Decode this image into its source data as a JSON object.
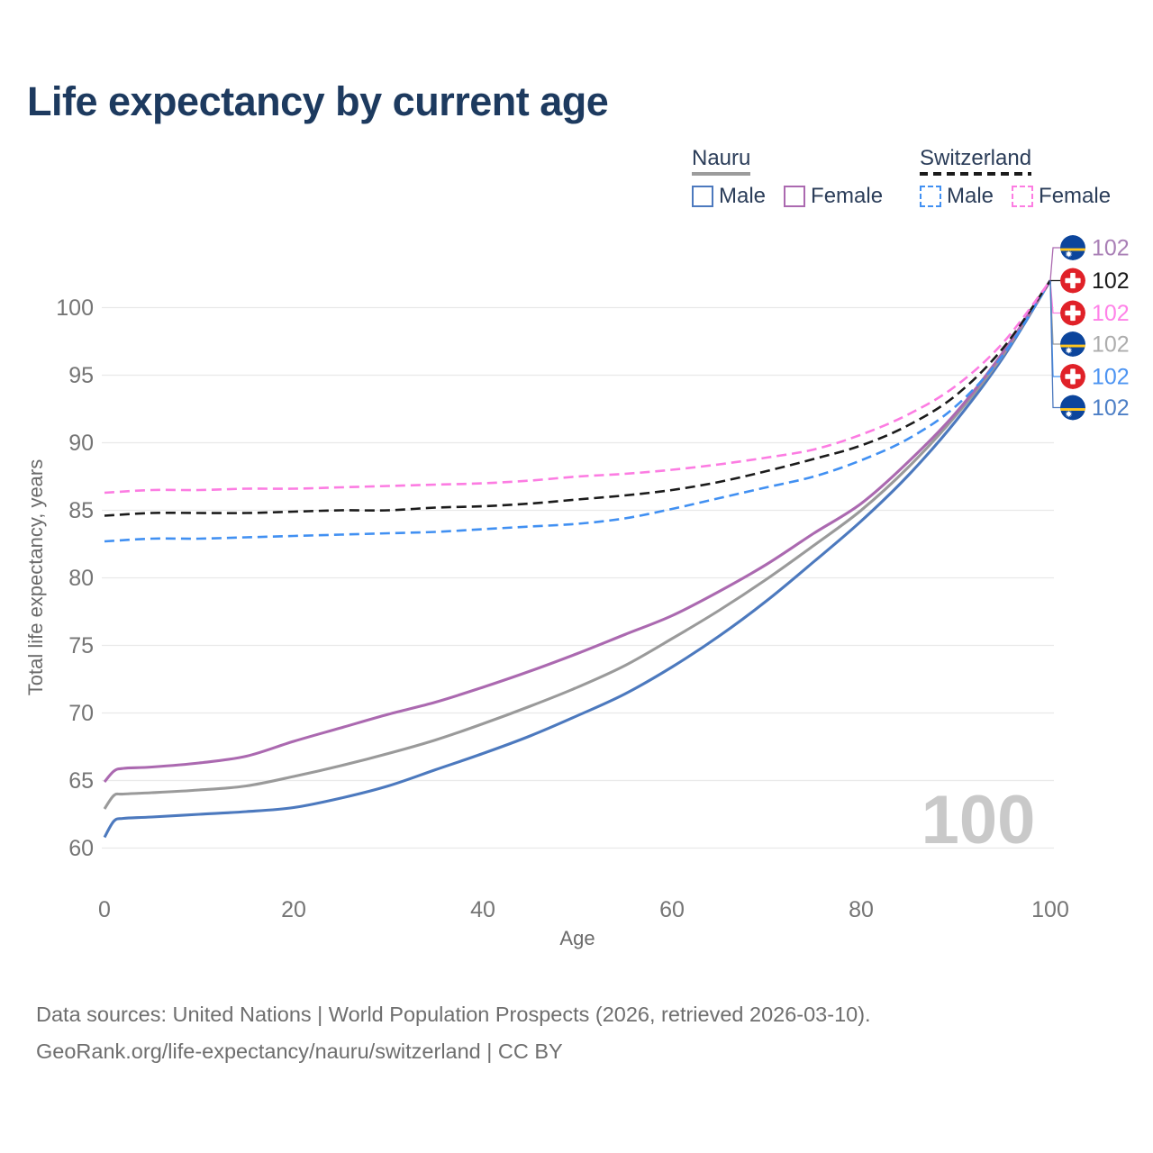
{
  "header": {
    "title": "Life expectancy by current age"
  },
  "legend": {
    "groups": [
      {
        "label": "Nauru",
        "underline_style": "solid",
        "underline_color": "#9c9c9c",
        "items": [
          {
            "label": "Male",
            "color": "#4c79be",
            "dashed": false
          },
          {
            "label": "Female",
            "color": "#ab69b0",
            "dashed": false
          }
        ]
      },
      {
        "label": "Switzerland",
        "underline_style": "dashed",
        "underline_color": "#1b1b1b",
        "items": [
          {
            "label": "Male",
            "color": "#4190f2",
            "dashed": true
          },
          {
            "label": "Female",
            "color": "#fc7ce2",
            "dashed": true
          }
        ]
      }
    ]
  },
  "chart_data": {
    "type": "line",
    "title": "Life expectancy by current age",
    "xlabel": "Age",
    "ylabel": "Total life expectancy, years",
    "xlim": [
      0,
      100
    ],
    "ylim": [
      60,
      100
    ],
    "x_ticks": [
      0,
      20,
      40,
      60,
      80,
      100
    ],
    "y_ticks": [
      60,
      65,
      70,
      75,
      80,
      85,
      90,
      95,
      100
    ],
    "grid": "horizontal",
    "legend_position": "top-right",
    "watermark": "100",
    "series": [
      {
        "id": "nauru_male",
        "name": "Nauru Male",
        "country": "Nauru",
        "sex": "male",
        "color": "#4c79be",
        "label_color": "#4d7fc6",
        "dashed": false,
        "flag": "nauru",
        "end_label": "102",
        "points": [
          [
            0,
            60.8
          ],
          [
            1,
            62.0
          ],
          [
            2,
            62.2
          ],
          [
            5,
            62.3
          ],
          [
            10,
            62.5
          ],
          [
            15,
            62.7
          ],
          [
            20,
            63.0
          ],
          [
            25,
            63.7
          ],
          [
            30,
            64.6
          ],
          [
            35,
            65.8
          ],
          [
            40,
            67.0
          ],
          [
            45,
            68.3
          ],
          [
            50,
            69.8
          ],
          [
            55,
            71.4
          ],
          [
            60,
            73.4
          ],
          [
            65,
            75.7
          ],
          [
            70,
            78.3
          ],
          [
            75,
            81.2
          ],
          [
            80,
            84.2
          ],
          [
            85,
            87.6
          ],
          [
            90,
            91.6
          ],
          [
            95,
            96.3
          ],
          [
            100,
            102
          ]
        ]
      },
      {
        "id": "nauru_total",
        "name": "Nauru",
        "country": "Nauru",
        "sex": "both",
        "color": "#9a9a9a",
        "label_color": "#adadad",
        "dashed": false,
        "flag": "nauru",
        "end_label": "102",
        "points": [
          [
            0,
            62.9
          ],
          [
            1,
            63.9
          ],
          [
            2,
            64.0
          ],
          [
            5,
            64.1
          ],
          [
            10,
            64.3
          ],
          [
            15,
            64.6
          ],
          [
            20,
            65.3
          ],
          [
            25,
            66.1
          ],
          [
            30,
            67.0
          ],
          [
            35,
            68.0
          ],
          [
            40,
            69.2
          ],
          [
            45,
            70.5
          ],
          [
            50,
            71.9
          ],
          [
            55,
            73.5
          ],
          [
            60,
            75.5
          ],
          [
            65,
            77.6
          ],
          [
            70,
            79.9
          ],
          [
            75,
            82.4
          ],
          [
            80,
            85.0
          ],
          [
            85,
            88.2
          ],
          [
            90,
            92.0
          ],
          [
            95,
            96.5
          ],
          [
            100,
            102
          ]
        ]
      },
      {
        "id": "nauru_female",
        "name": "Nauru Female",
        "country": "Nauru",
        "sex": "female",
        "color": "#ab69b0",
        "label_color": "#a97fb6",
        "dashed": false,
        "flag": "nauru",
        "end_label": "102",
        "points": [
          [
            0,
            64.9
          ],
          [
            1,
            65.7
          ],
          [
            2,
            65.9
          ],
          [
            5,
            66.0
          ],
          [
            10,
            66.3
          ],
          [
            15,
            66.8
          ],
          [
            20,
            67.9
          ],
          [
            25,
            68.9
          ],
          [
            30,
            69.9
          ],
          [
            35,
            70.8
          ],
          [
            40,
            71.9
          ],
          [
            45,
            73.1
          ],
          [
            50,
            74.4
          ],
          [
            55,
            75.8
          ],
          [
            60,
            77.2
          ],
          [
            65,
            79.0
          ],
          [
            70,
            81.0
          ],
          [
            75,
            83.3
          ],
          [
            80,
            85.5
          ],
          [
            85,
            88.6
          ],
          [
            90,
            92.2
          ],
          [
            95,
            96.7
          ],
          [
            100,
            102
          ]
        ]
      },
      {
        "id": "swiss_male",
        "name": "Switzerland Male",
        "country": "Switzerland",
        "sex": "male",
        "color": "#4190f2",
        "label_color": "#4d94f2",
        "dashed": true,
        "flag": "switzerland",
        "end_label": "102",
        "points": [
          [
            0,
            82.7
          ],
          [
            5,
            82.9
          ],
          [
            10,
            82.9
          ],
          [
            15,
            83.0
          ],
          [
            20,
            83.1
          ],
          [
            25,
            83.2
          ],
          [
            30,
            83.3
          ],
          [
            35,
            83.4
          ],
          [
            40,
            83.6
          ],
          [
            45,
            83.8
          ],
          [
            50,
            84.0
          ],
          [
            55,
            84.4
          ],
          [
            60,
            85.1
          ],
          [
            65,
            85.9
          ],
          [
            70,
            86.7
          ],
          [
            75,
            87.5
          ],
          [
            80,
            88.7
          ],
          [
            85,
            90.3
          ],
          [
            90,
            92.7
          ],
          [
            95,
            96.5
          ],
          [
            100,
            102
          ]
        ]
      },
      {
        "id": "swiss_total",
        "name": "Switzerland",
        "country": "Switzerland",
        "sex": "both",
        "color": "#1b1b1b",
        "label_color": "#1a1a1a",
        "dashed": true,
        "flag": "switzerland",
        "end_label": "102",
        "points": [
          [
            0,
            84.6
          ],
          [
            5,
            84.8
          ],
          [
            10,
            84.8
          ],
          [
            15,
            84.8
          ],
          [
            20,
            84.9
          ],
          [
            25,
            85.0
          ],
          [
            30,
            85.0
          ],
          [
            35,
            85.2
          ],
          [
            40,
            85.3
          ],
          [
            45,
            85.5
          ],
          [
            50,
            85.8
          ],
          [
            55,
            86.1
          ],
          [
            60,
            86.5
          ],
          [
            65,
            87.1
          ],
          [
            70,
            87.9
          ],
          [
            75,
            88.8
          ],
          [
            80,
            89.8
          ],
          [
            85,
            91.3
          ],
          [
            90,
            93.5
          ],
          [
            95,
            97.0
          ],
          [
            100,
            102
          ]
        ]
      },
      {
        "id": "swiss_female",
        "name": "Switzerland Female",
        "country": "Switzerland",
        "sex": "female",
        "color": "#fc7ce2",
        "label_color": "#ff82e8",
        "dashed": true,
        "flag": "switzerland",
        "end_label": "102",
        "points": [
          [
            0,
            86.3
          ],
          [
            5,
            86.5
          ],
          [
            10,
            86.5
          ],
          [
            15,
            86.6
          ],
          [
            20,
            86.6
          ],
          [
            25,
            86.7
          ],
          [
            30,
            86.8
          ],
          [
            35,
            86.9
          ],
          [
            40,
            87.0
          ],
          [
            45,
            87.2
          ],
          [
            50,
            87.5
          ],
          [
            55,
            87.7
          ],
          [
            60,
            88.0
          ],
          [
            65,
            88.4
          ],
          [
            70,
            88.9
          ],
          [
            75,
            89.5
          ],
          [
            80,
            90.6
          ],
          [
            85,
            92.1
          ],
          [
            90,
            94.2
          ],
          [
            95,
            97.4
          ],
          [
            100,
            102
          ]
        ]
      }
    ],
    "end_label_rows": [
      "nauru_female",
      "swiss_total",
      "swiss_female",
      "nauru_total",
      "swiss_male",
      "nauru_male"
    ]
  },
  "footer": {
    "line1": "Data sources: United Nations | World Population Prospects (2026, retrieved 2026-03-10).",
    "line2": "GeoRank.org/life-expectancy/nauru/switzerland | CC BY"
  }
}
